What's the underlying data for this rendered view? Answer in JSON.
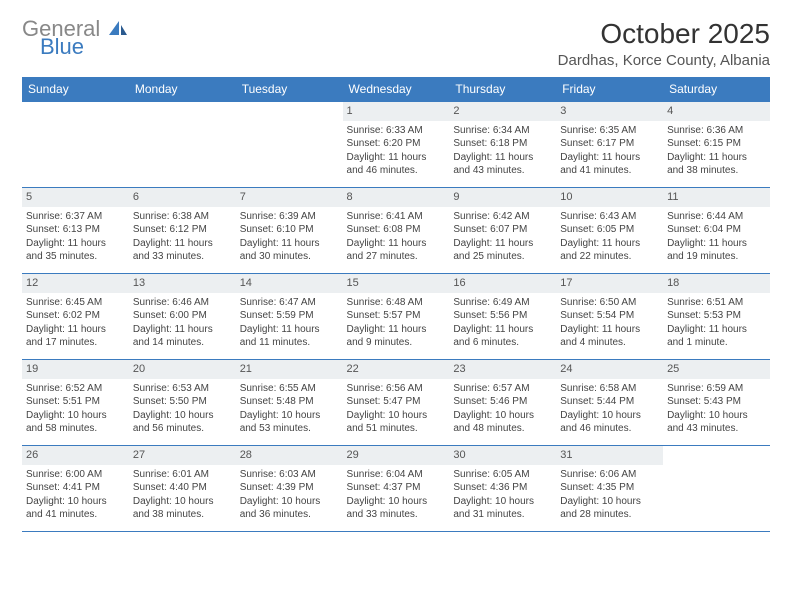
{
  "logo": {
    "gray": "General",
    "blue": "Blue"
  },
  "title": "October 2025",
  "location": "Dardhas, Korce County, Albania",
  "weekdays": [
    "Sunday",
    "Monday",
    "Tuesday",
    "Wednesday",
    "Thursday",
    "Friday",
    "Saturday"
  ],
  "colors": {
    "header_bg": "#3b7bbf",
    "header_text": "#ffffff",
    "daynum_bg": "#eceff1",
    "border": "#3b7bbf",
    "logo_gray": "#888888",
    "logo_blue": "#3b7bbf"
  },
  "font": {
    "title_size": 28,
    "location_size": 15,
    "weekday_size": 12,
    "cell_size": 10
  },
  "weeks": [
    [
      {
        "n": "",
        "sr": "",
        "ss": "",
        "dl": ""
      },
      {
        "n": "",
        "sr": "",
        "ss": "",
        "dl": ""
      },
      {
        "n": "",
        "sr": "",
        "ss": "",
        "dl": ""
      },
      {
        "n": "1",
        "sr": "Sunrise: 6:33 AM",
        "ss": "Sunset: 6:20 PM",
        "dl": "Daylight: 11 hours and 46 minutes."
      },
      {
        "n": "2",
        "sr": "Sunrise: 6:34 AM",
        "ss": "Sunset: 6:18 PM",
        "dl": "Daylight: 11 hours and 43 minutes."
      },
      {
        "n": "3",
        "sr": "Sunrise: 6:35 AM",
        "ss": "Sunset: 6:17 PM",
        "dl": "Daylight: 11 hours and 41 minutes."
      },
      {
        "n": "4",
        "sr": "Sunrise: 6:36 AM",
        "ss": "Sunset: 6:15 PM",
        "dl": "Daylight: 11 hours and 38 minutes."
      }
    ],
    [
      {
        "n": "5",
        "sr": "Sunrise: 6:37 AM",
        "ss": "Sunset: 6:13 PM",
        "dl": "Daylight: 11 hours and 35 minutes."
      },
      {
        "n": "6",
        "sr": "Sunrise: 6:38 AM",
        "ss": "Sunset: 6:12 PM",
        "dl": "Daylight: 11 hours and 33 minutes."
      },
      {
        "n": "7",
        "sr": "Sunrise: 6:39 AM",
        "ss": "Sunset: 6:10 PM",
        "dl": "Daylight: 11 hours and 30 minutes."
      },
      {
        "n": "8",
        "sr": "Sunrise: 6:41 AM",
        "ss": "Sunset: 6:08 PM",
        "dl": "Daylight: 11 hours and 27 minutes."
      },
      {
        "n": "9",
        "sr": "Sunrise: 6:42 AM",
        "ss": "Sunset: 6:07 PM",
        "dl": "Daylight: 11 hours and 25 minutes."
      },
      {
        "n": "10",
        "sr": "Sunrise: 6:43 AM",
        "ss": "Sunset: 6:05 PM",
        "dl": "Daylight: 11 hours and 22 minutes."
      },
      {
        "n": "11",
        "sr": "Sunrise: 6:44 AM",
        "ss": "Sunset: 6:04 PM",
        "dl": "Daylight: 11 hours and 19 minutes."
      }
    ],
    [
      {
        "n": "12",
        "sr": "Sunrise: 6:45 AM",
        "ss": "Sunset: 6:02 PM",
        "dl": "Daylight: 11 hours and 17 minutes."
      },
      {
        "n": "13",
        "sr": "Sunrise: 6:46 AM",
        "ss": "Sunset: 6:00 PM",
        "dl": "Daylight: 11 hours and 14 minutes."
      },
      {
        "n": "14",
        "sr": "Sunrise: 6:47 AM",
        "ss": "Sunset: 5:59 PM",
        "dl": "Daylight: 11 hours and 11 minutes."
      },
      {
        "n": "15",
        "sr": "Sunrise: 6:48 AM",
        "ss": "Sunset: 5:57 PM",
        "dl": "Daylight: 11 hours and 9 minutes."
      },
      {
        "n": "16",
        "sr": "Sunrise: 6:49 AM",
        "ss": "Sunset: 5:56 PM",
        "dl": "Daylight: 11 hours and 6 minutes."
      },
      {
        "n": "17",
        "sr": "Sunrise: 6:50 AM",
        "ss": "Sunset: 5:54 PM",
        "dl": "Daylight: 11 hours and 4 minutes."
      },
      {
        "n": "18",
        "sr": "Sunrise: 6:51 AM",
        "ss": "Sunset: 5:53 PM",
        "dl": "Daylight: 11 hours and 1 minute."
      }
    ],
    [
      {
        "n": "19",
        "sr": "Sunrise: 6:52 AM",
        "ss": "Sunset: 5:51 PM",
        "dl": "Daylight: 10 hours and 58 minutes."
      },
      {
        "n": "20",
        "sr": "Sunrise: 6:53 AM",
        "ss": "Sunset: 5:50 PM",
        "dl": "Daylight: 10 hours and 56 minutes."
      },
      {
        "n": "21",
        "sr": "Sunrise: 6:55 AM",
        "ss": "Sunset: 5:48 PM",
        "dl": "Daylight: 10 hours and 53 minutes."
      },
      {
        "n": "22",
        "sr": "Sunrise: 6:56 AM",
        "ss": "Sunset: 5:47 PM",
        "dl": "Daylight: 10 hours and 51 minutes."
      },
      {
        "n": "23",
        "sr": "Sunrise: 6:57 AM",
        "ss": "Sunset: 5:46 PM",
        "dl": "Daylight: 10 hours and 48 minutes."
      },
      {
        "n": "24",
        "sr": "Sunrise: 6:58 AM",
        "ss": "Sunset: 5:44 PM",
        "dl": "Daylight: 10 hours and 46 minutes."
      },
      {
        "n": "25",
        "sr": "Sunrise: 6:59 AM",
        "ss": "Sunset: 5:43 PM",
        "dl": "Daylight: 10 hours and 43 minutes."
      }
    ],
    [
      {
        "n": "26",
        "sr": "Sunrise: 6:00 AM",
        "ss": "Sunset: 4:41 PM",
        "dl": "Daylight: 10 hours and 41 minutes."
      },
      {
        "n": "27",
        "sr": "Sunrise: 6:01 AM",
        "ss": "Sunset: 4:40 PM",
        "dl": "Daylight: 10 hours and 38 minutes."
      },
      {
        "n": "28",
        "sr": "Sunrise: 6:03 AM",
        "ss": "Sunset: 4:39 PM",
        "dl": "Daylight: 10 hours and 36 minutes."
      },
      {
        "n": "29",
        "sr": "Sunrise: 6:04 AM",
        "ss": "Sunset: 4:37 PM",
        "dl": "Daylight: 10 hours and 33 minutes."
      },
      {
        "n": "30",
        "sr": "Sunrise: 6:05 AM",
        "ss": "Sunset: 4:36 PM",
        "dl": "Daylight: 10 hours and 31 minutes."
      },
      {
        "n": "31",
        "sr": "Sunrise: 6:06 AM",
        "ss": "Sunset: 4:35 PM",
        "dl": "Daylight: 10 hours and 28 minutes."
      },
      {
        "n": "",
        "sr": "",
        "ss": "",
        "dl": ""
      }
    ]
  ]
}
